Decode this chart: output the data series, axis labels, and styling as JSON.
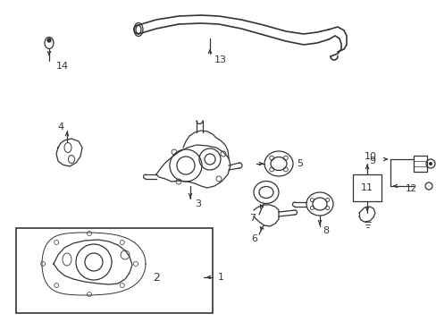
{
  "background_color": "#ffffff",
  "fig_width": 4.89,
  "fig_height": 3.6,
  "dpi": 100,
  "line_color": "#333333",
  "lw": 0.9
}
